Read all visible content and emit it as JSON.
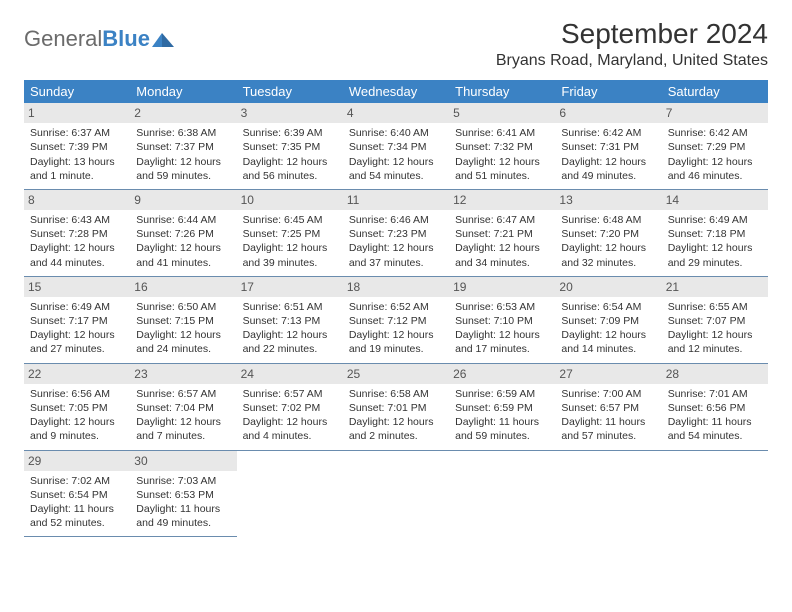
{
  "brand": {
    "part1": "General",
    "part2": "Blue"
  },
  "title": "September 2024",
  "location": "Bryans Road, Maryland, United States",
  "colors": {
    "header_bg": "#3b82c4",
    "header_text": "#ffffff",
    "daynum_bg": "#e8e8e8",
    "rule": "#6a8cae",
    "body_text": "#333333",
    "brand_blue": "#3b82c4",
    "brand_gray": "#6b6b6b",
    "page_bg": "#ffffff"
  },
  "typography": {
    "title_fontsize": 28,
    "location_fontsize": 16,
    "dow_fontsize": 13,
    "cell_fontsize": 10.5,
    "font_family": "Arial"
  },
  "days_of_week": [
    "Sunday",
    "Monday",
    "Tuesday",
    "Wednesday",
    "Thursday",
    "Friday",
    "Saturday"
  ],
  "weeks": [
    [
      {
        "n": "1",
        "sr": "Sunrise: 6:37 AM",
        "ss": "Sunset: 7:39 PM",
        "dl": "Daylight: 13 hours and 1 minute."
      },
      {
        "n": "2",
        "sr": "Sunrise: 6:38 AM",
        "ss": "Sunset: 7:37 PM",
        "dl": "Daylight: 12 hours and 59 minutes."
      },
      {
        "n": "3",
        "sr": "Sunrise: 6:39 AM",
        "ss": "Sunset: 7:35 PM",
        "dl": "Daylight: 12 hours and 56 minutes."
      },
      {
        "n": "4",
        "sr": "Sunrise: 6:40 AM",
        "ss": "Sunset: 7:34 PM",
        "dl": "Daylight: 12 hours and 54 minutes."
      },
      {
        "n": "5",
        "sr": "Sunrise: 6:41 AM",
        "ss": "Sunset: 7:32 PM",
        "dl": "Daylight: 12 hours and 51 minutes."
      },
      {
        "n": "6",
        "sr": "Sunrise: 6:42 AM",
        "ss": "Sunset: 7:31 PM",
        "dl": "Daylight: 12 hours and 49 minutes."
      },
      {
        "n": "7",
        "sr": "Sunrise: 6:42 AM",
        "ss": "Sunset: 7:29 PM",
        "dl": "Daylight: 12 hours and 46 minutes."
      }
    ],
    [
      {
        "n": "8",
        "sr": "Sunrise: 6:43 AM",
        "ss": "Sunset: 7:28 PM",
        "dl": "Daylight: 12 hours and 44 minutes."
      },
      {
        "n": "9",
        "sr": "Sunrise: 6:44 AM",
        "ss": "Sunset: 7:26 PM",
        "dl": "Daylight: 12 hours and 41 minutes."
      },
      {
        "n": "10",
        "sr": "Sunrise: 6:45 AM",
        "ss": "Sunset: 7:25 PM",
        "dl": "Daylight: 12 hours and 39 minutes."
      },
      {
        "n": "11",
        "sr": "Sunrise: 6:46 AM",
        "ss": "Sunset: 7:23 PM",
        "dl": "Daylight: 12 hours and 37 minutes."
      },
      {
        "n": "12",
        "sr": "Sunrise: 6:47 AM",
        "ss": "Sunset: 7:21 PM",
        "dl": "Daylight: 12 hours and 34 minutes."
      },
      {
        "n": "13",
        "sr": "Sunrise: 6:48 AM",
        "ss": "Sunset: 7:20 PM",
        "dl": "Daylight: 12 hours and 32 minutes."
      },
      {
        "n": "14",
        "sr": "Sunrise: 6:49 AM",
        "ss": "Sunset: 7:18 PM",
        "dl": "Daylight: 12 hours and 29 minutes."
      }
    ],
    [
      {
        "n": "15",
        "sr": "Sunrise: 6:49 AM",
        "ss": "Sunset: 7:17 PM",
        "dl": "Daylight: 12 hours and 27 minutes."
      },
      {
        "n": "16",
        "sr": "Sunrise: 6:50 AM",
        "ss": "Sunset: 7:15 PM",
        "dl": "Daylight: 12 hours and 24 minutes."
      },
      {
        "n": "17",
        "sr": "Sunrise: 6:51 AM",
        "ss": "Sunset: 7:13 PM",
        "dl": "Daylight: 12 hours and 22 minutes."
      },
      {
        "n": "18",
        "sr": "Sunrise: 6:52 AM",
        "ss": "Sunset: 7:12 PM",
        "dl": "Daylight: 12 hours and 19 minutes."
      },
      {
        "n": "19",
        "sr": "Sunrise: 6:53 AM",
        "ss": "Sunset: 7:10 PM",
        "dl": "Daylight: 12 hours and 17 minutes."
      },
      {
        "n": "20",
        "sr": "Sunrise: 6:54 AM",
        "ss": "Sunset: 7:09 PM",
        "dl": "Daylight: 12 hours and 14 minutes."
      },
      {
        "n": "21",
        "sr": "Sunrise: 6:55 AM",
        "ss": "Sunset: 7:07 PM",
        "dl": "Daylight: 12 hours and 12 minutes."
      }
    ],
    [
      {
        "n": "22",
        "sr": "Sunrise: 6:56 AM",
        "ss": "Sunset: 7:05 PM",
        "dl": "Daylight: 12 hours and 9 minutes."
      },
      {
        "n": "23",
        "sr": "Sunrise: 6:57 AM",
        "ss": "Sunset: 7:04 PM",
        "dl": "Daylight: 12 hours and 7 minutes."
      },
      {
        "n": "24",
        "sr": "Sunrise: 6:57 AM",
        "ss": "Sunset: 7:02 PM",
        "dl": "Daylight: 12 hours and 4 minutes."
      },
      {
        "n": "25",
        "sr": "Sunrise: 6:58 AM",
        "ss": "Sunset: 7:01 PM",
        "dl": "Daylight: 12 hours and 2 minutes."
      },
      {
        "n": "26",
        "sr": "Sunrise: 6:59 AM",
        "ss": "Sunset: 6:59 PM",
        "dl": "Daylight: 11 hours and 59 minutes."
      },
      {
        "n": "27",
        "sr": "Sunrise: 7:00 AM",
        "ss": "Sunset: 6:57 PM",
        "dl": "Daylight: 11 hours and 57 minutes."
      },
      {
        "n": "28",
        "sr": "Sunrise: 7:01 AM",
        "ss": "Sunset: 6:56 PM",
        "dl": "Daylight: 11 hours and 54 minutes."
      }
    ],
    [
      {
        "n": "29",
        "sr": "Sunrise: 7:02 AM",
        "ss": "Sunset: 6:54 PM",
        "dl": "Daylight: 11 hours and 52 minutes."
      },
      {
        "n": "30",
        "sr": "Sunrise: 7:03 AM",
        "ss": "Sunset: 6:53 PM",
        "dl": "Daylight: 11 hours and 49 minutes."
      },
      null,
      null,
      null,
      null,
      null
    ]
  ]
}
